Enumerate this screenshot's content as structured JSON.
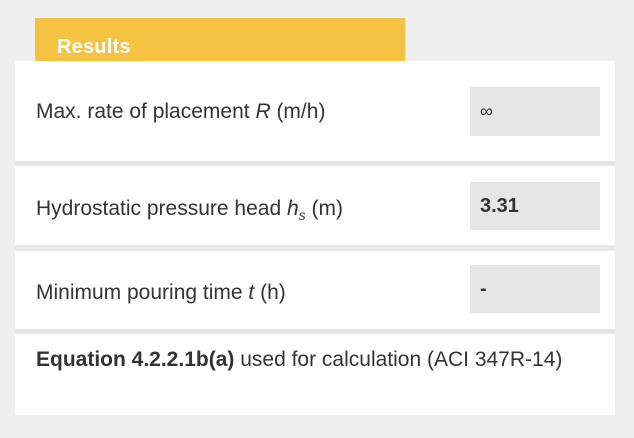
{
  "header": {
    "title": "Results"
  },
  "rows": [
    {
      "label_prefix": "Max. rate of placement ",
      "label_var": "R",
      "label_sub": "",
      "label_suffix": " (m/h)",
      "value": "∞"
    },
    {
      "label_prefix": "Hydrostatic pressure head ",
      "label_var": "h",
      "label_sub": "s",
      "label_suffix": " (m)",
      "value": "3.31"
    },
    {
      "label_prefix": "Minimum pouring time ",
      "label_var": "t",
      "label_sub": "",
      "label_suffix": " (h)",
      "value": "-"
    }
  ],
  "note": {
    "equation": "Equation 4.2.2.1b(a)",
    "text": " used for calculation (ACI 347R-14)"
  },
  "colors": {
    "header_accent": "#f5c342",
    "value_box_bg": "#e6e6e6",
    "page_bg": "#efefef"
  }
}
